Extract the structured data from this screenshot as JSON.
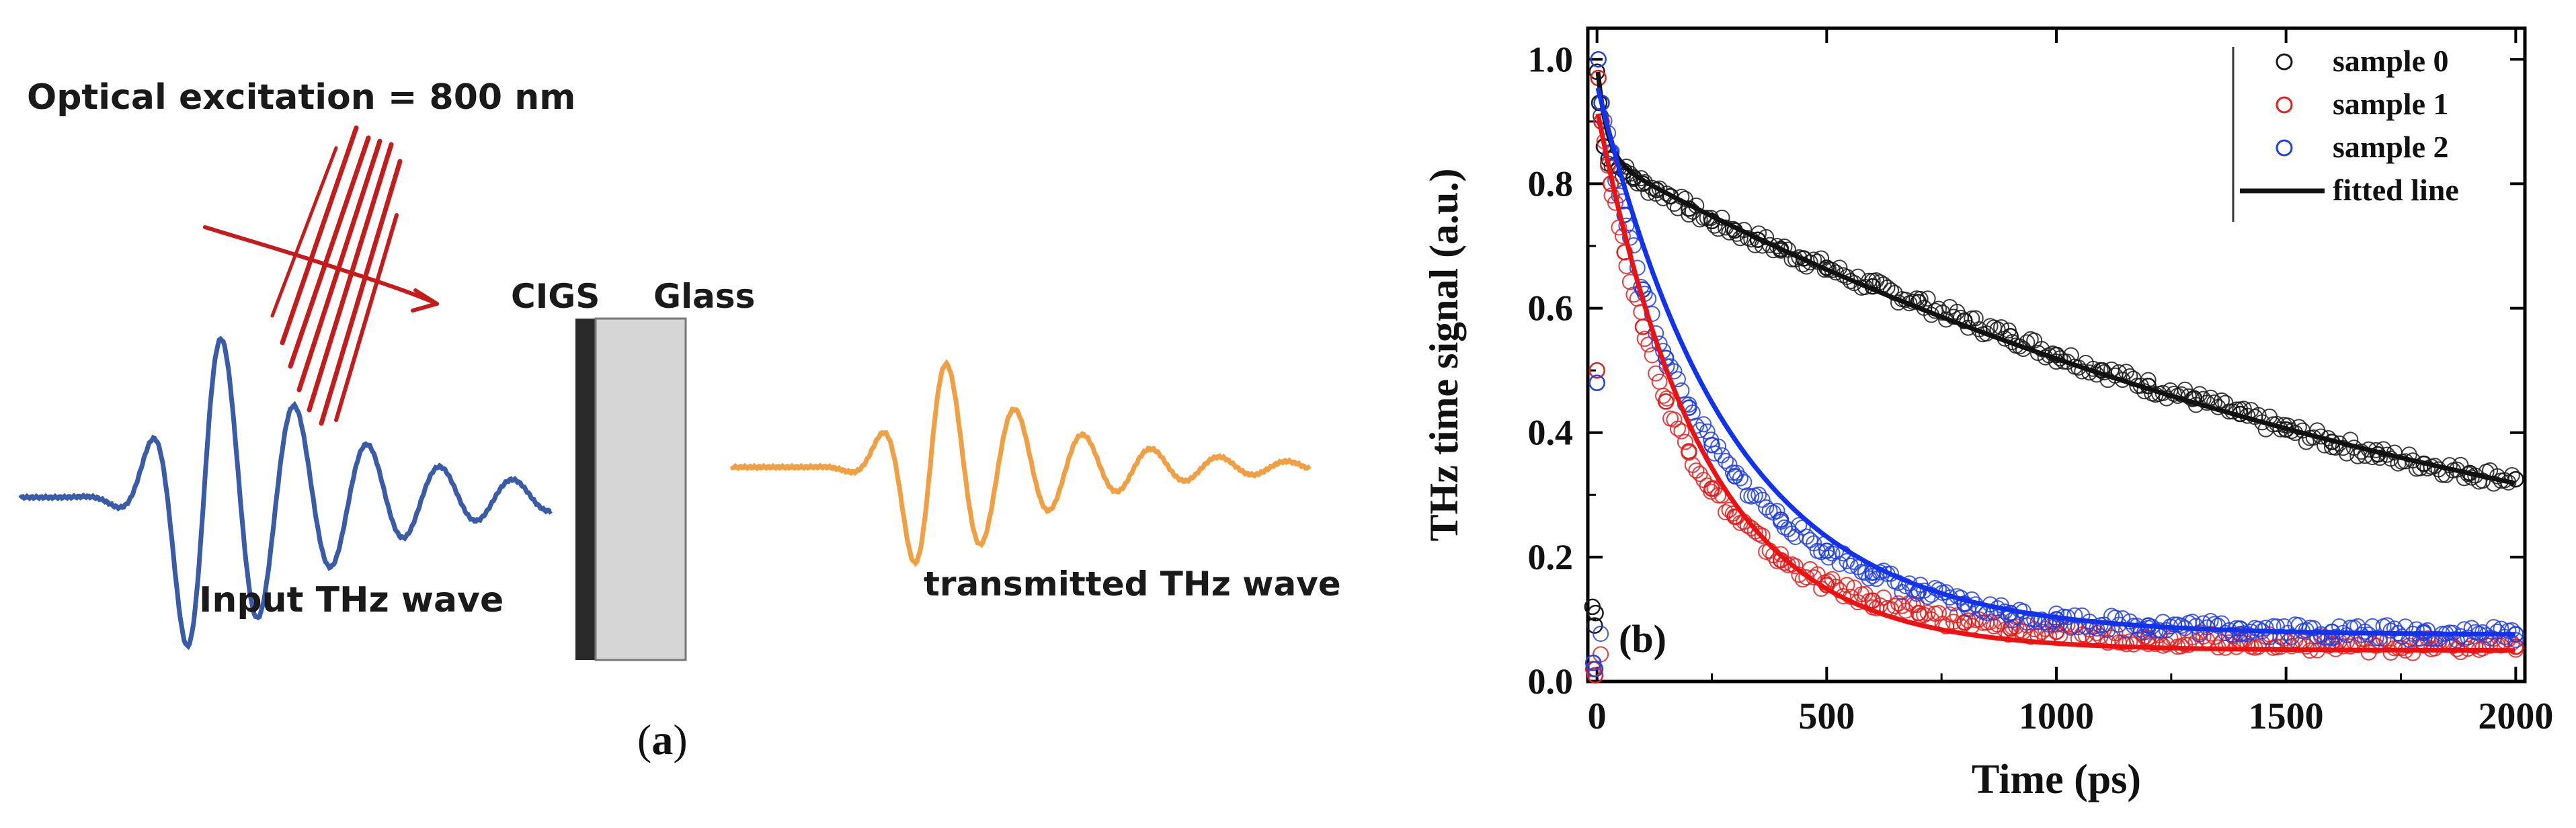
{
  "panel_a": {
    "excitation_label": "Optical excitation = 800 nm",
    "cigs_label": "CIGS",
    "glass_label": "Glass",
    "input_wave_label": "Input THz wave",
    "transmitted_wave_label": "transmitted THz wave",
    "panel_letter": "a",
    "panel_caption_open": "(",
    "panel_caption_close": ")",
    "colors": {
      "input_wave": "#3a5ba8",
      "transmitted_wave": "#f0a043",
      "excitation": "#c41b1b",
      "cigs_layer": "#2a2a2a",
      "glass": "#d6d6d6"
    }
  },
  "chart_data": {
    "type": "scatter",
    "panel_label": "(b)",
    "title": "",
    "xlabel": "Time (ps)",
    "ylabel": "THz time signal (a.u.)",
    "xlim": [
      -20,
      2020
    ],
    "ylim": [
      0.0,
      1.05
    ],
    "xticks": [
      0,
      500,
      1000,
      1500,
      2000
    ],
    "xtick_labels": [
      "0",
      "500",
      "1000",
      "1500",
      "2000"
    ],
    "yticks": [
      0.0,
      0.2,
      0.4,
      0.6,
      0.8,
      1.0
    ],
    "ytick_labels": [
      "0.0",
      "0.2",
      "0.4",
      "0.6",
      "0.8",
      "1.0"
    ],
    "legend_position": "top-right",
    "series": [
      {
        "name": "sample 0",
        "color": "#1a1a1a",
        "points": [
          [
            -10,
            0.12
          ],
          [
            -5,
            0.09
          ],
          [
            -3,
            0.11
          ],
          [
            0,
            0.98
          ],
          [
            5,
            0.93
          ],
          [
            15,
            0.86
          ],
          [
            25,
            0.84
          ],
          [
            40,
            0.83
          ],
          [
            60,
            0.82
          ],
          [
            80,
            0.81
          ],
          [
            100,
            0.8
          ],
          [
            130,
            0.79
          ],
          [
            160,
            0.78
          ],
          [
            200,
            0.76
          ],
          [
            250,
            0.74
          ],
          [
            300,
            0.725
          ],
          [
            350,
            0.71
          ],
          [
            400,
            0.695
          ],
          [
            450,
            0.68
          ],
          [
            500,
            0.665
          ],
          [
            600,
            0.635
          ],
          [
            700,
            0.61
          ],
          [
            800,
            0.58
          ],
          [
            900,
            0.555
          ],
          [
            1000,
            0.525
          ],
          [
            1100,
            0.5
          ],
          [
            1200,
            0.475
          ],
          [
            1300,
            0.455
          ],
          [
            1400,
            0.43
          ],
          [
            1500,
            0.405
          ],
          [
            1600,
            0.385
          ],
          [
            1700,
            0.365
          ],
          [
            1800,
            0.35
          ],
          [
            1900,
            0.335
          ],
          [
            2000,
            0.325
          ]
        ]
      },
      {
        "name": "sample 1",
        "color": "#e02020",
        "points": [
          [
            -8,
            0.02
          ],
          [
            -4,
            0.01
          ],
          [
            0,
            0.5
          ],
          [
            3,
            0.97
          ],
          [
            10,
            0.9
          ],
          [
            30,
            0.8
          ],
          [
            60,
            0.69
          ],
          [
            100,
            0.57
          ],
          [
            150,
            0.45
          ],
          [
            200,
            0.37
          ],
          [
            250,
            0.31
          ],
          [
            300,
            0.265
          ],
          [
            400,
            0.195
          ],
          [
            500,
            0.155
          ],
          [
            600,
            0.13
          ],
          [
            700,
            0.11
          ],
          [
            800,
            0.095
          ],
          [
            900,
            0.085
          ],
          [
            1000,
            0.08
          ],
          [
            1200,
            0.07
          ],
          [
            1400,
            0.065
          ],
          [
            1600,
            0.06
          ],
          [
            1800,
            0.058
          ],
          [
            2000,
            0.056
          ]
        ]
      },
      {
        "name": "sample 2",
        "color": "#2040e0",
        "points": [
          [
            -8,
            0.03
          ],
          [
            -4,
            0.02
          ],
          [
            0,
            0.48
          ],
          [
            3,
            1.0
          ],
          [
            10,
            0.93
          ],
          [
            30,
            0.85
          ],
          [
            60,
            0.75
          ],
          [
            100,
            0.63
          ],
          [
            150,
            0.52
          ],
          [
            200,
            0.44
          ],
          [
            250,
            0.38
          ],
          [
            300,
            0.33
          ],
          [
            400,
            0.26
          ],
          [
            500,
            0.21
          ],
          [
            600,
            0.175
          ],
          [
            700,
            0.145
          ],
          [
            800,
            0.125
          ],
          [
            900,
            0.11
          ],
          [
            1000,
            0.1
          ],
          [
            1200,
            0.09
          ],
          [
            1400,
            0.085
          ],
          [
            1600,
            0.08
          ],
          [
            1800,
            0.078
          ],
          [
            2000,
            0.076
          ]
        ]
      }
    ],
    "fit_lines": [
      {
        "name": "sample 0 fit",
        "color": "#111111",
        "y0": 0.845,
        "a": 0.8,
        "tau": 2050,
        "c": 0.0,
        "spike": 0.15,
        "spike_tau": 20
      },
      {
        "name": "sample 1 fit",
        "color": "#ee1111",
        "y0": 0.92,
        "a": 0.87,
        "tau": 230,
        "c": 0.05
      },
      {
        "name": "sample 2 fit",
        "color": "#1133ee",
        "y0": 0.96,
        "a": 0.89,
        "tau": 290,
        "c": 0.075
      }
    ],
    "legend": [
      {
        "label": "sample 0",
        "kind": "marker",
        "color": "#1a1a1a"
      },
      {
        "label": "sample 1",
        "kind": "marker",
        "color": "#e02020"
      },
      {
        "label": "sample 2",
        "kind": "marker",
        "color": "#2040e0"
      },
      {
        "label": "fitted line",
        "kind": "line",
        "color": "#111111"
      }
    ]
  }
}
